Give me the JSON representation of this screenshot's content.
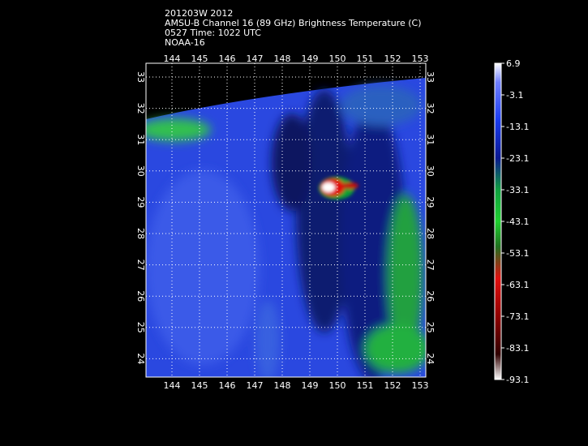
{
  "header": {
    "lines": [
      "201203W 2012",
      "AMSU-B Channel 16 (89 GHz) Brightness Temperature (C)",
      "0527 Time: 1022 UTC",
      "NOAA-16"
    ]
  },
  "map": {
    "lon_ticks": [
      144,
      145,
      146,
      147,
      148,
      149,
      150,
      151,
      152,
      153
    ],
    "lat_ticks": [
      33,
      32,
      31,
      30,
      29,
      28,
      27,
      26,
      25,
      24
    ]
  },
  "colorbar": {
    "ticks": [
      6.9,
      -3.1,
      -13.1,
      -23.1,
      -33.1,
      -43.1,
      -53.1,
      -63.1,
      -73.1,
      -83.1,
      -93.1
    ]
  }
}
